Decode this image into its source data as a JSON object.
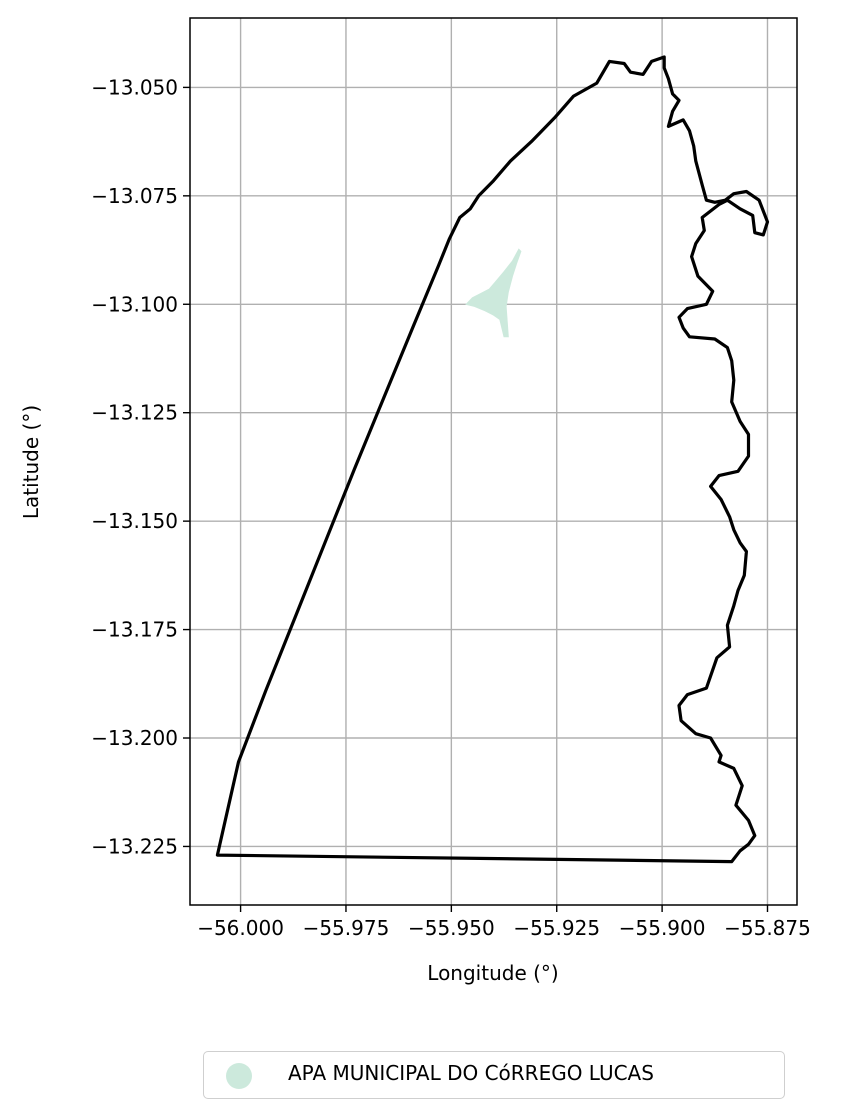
{
  "chart_data": {
    "type": "map",
    "xlabel": "Longitude (°)",
    "ylabel": "Latitude (°)",
    "xlim": [
      -56.012,
      -55.868
    ],
    "ylim": [
      -13.2385,
      -13.034
    ],
    "grid": true,
    "x_ticks": [
      -56.0,
      -55.975,
      -55.95,
      -55.925,
      -55.9,
      -55.875
    ],
    "x_tick_labels": [
      "−56.000",
      "−55.975",
      "−55.950",
      "−55.925",
      "−55.900",
      "−55.875"
    ],
    "y_ticks": [
      -13.05,
      -13.075,
      -13.1,
      -13.125,
      -13.15,
      -13.175,
      -13.2,
      -13.225
    ],
    "y_tick_labels": [
      "−13.050",
      "−13.075",
      "−13.100",
      "−13.125",
      "−13.150",
      "−13.175",
      "−13.200",
      "−13.225"
    ],
    "legend_position": "bottom-center",
    "outline_color": "#000000",
    "layers": [
      {
        "name": "APA MUNICIPAL DO CóRREGO LUCAS",
        "color": "#cce9dc",
        "geometry": "polygon",
        "coordinates": [
          [
            -55.9465,
            -13.1
          ],
          [
            -55.945,
            -13.0985
          ],
          [
            -55.943,
            -13.0975
          ],
          [
            -55.941,
            -13.0965
          ],
          [
            -55.9395,
            -13.0948
          ],
          [
            -55.9375,
            -13.0925
          ],
          [
            -55.9355,
            -13.09
          ],
          [
            -55.934,
            -13.0873
          ],
          [
            -55.9335,
            -13.0878
          ],
          [
            -55.9345,
            -13.0905
          ],
          [
            -55.9355,
            -13.0935
          ],
          [
            -55.9365,
            -13.0972
          ],
          [
            -55.937,
            -13.1005
          ],
          [
            -55.9365,
            -13.1075
          ],
          [
            -55.9375,
            -13.1075
          ],
          [
            -55.9385,
            -13.1035
          ],
          [
            -55.94,
            -13.1025
          ],
          [
            -55.942,
            -13.1015
          ],
          [
            -55.9445,
            -13.1005
          ]
        ]
      },
      {
        "name": "",
        "color": "#000000",
        "geometry": "polygon-outline",
        "coordinates": [
          [
            -56.0055,
            -13.227
          ],
          [
            -55.8835,
            -13.2285
          ],
          [
            -55.8815,
            -13.226
          ],
          [
            -55.8795,
            -13.2245
          ],
          [
            -55.878,
            -13.2225
          ],
          [
            -55.8795,
            -13.219
          ],
          [
            -55.8825,
            -13.2155
          ],
          [
            -55.881,
            -13.211
          ],
          [
            -55.883,
            -13.207
          ],
          [
            -55.8865,
            -13.2055
          ],
          [
            -55.886,
            -13.204
          ],
          [
            -55.8885,
            -13.2
          ],
          [
            -55.892,
            -13.199
          ],
          [
            -55.8955,
            -13.196
          ],
          [
            -55.896,
            -13.1925
          ],
          [
            -55.894,
            -13.19
          ],
          [
            -55.8895,
            -13.1885
          ],
          [
            -55.887,
            -13.1815
          ],
          [
            -55.884,
            -13.179
          ],
          [
            -55.8845,
            -13.174
          ],
          [
            -55.883,
            -13.1695
          ],
          [
            -55.882,
            -13.166
          ],
          [
            -55.8805,
            -13.1625
          ],
          [
            -55.88,
            -13.157
          ],
          [
            -55.8815,
            -13.155
          ],
          [
            -55.883,
            -13.152
          ],
          [
            -55.884,
            -13.149
          ],
          [
            -55.886,
            -13.145
          ],
          [
            -55.8885,
            -13.142
          ],
          [
            -55.8865,
            -13.1395
          ],
          [
            -55.882,
            -13.1385
          ],
          [
            -55.8795,
            -13.135
          ],
          [
            -55.8795,
            -13.1315
          ],
          [
            -55.8795,
            -13.13
          ],
          [
            -55.8815,
            -13.127
          ],
          [
            -55.8835,
            -13.1225
          ],
          [
            -55.883,
            -13.1175
          ],
          [
            -55.8835,
            -13.113
          ],
          [
            -55.8845,
            -13.11
          ],
          [
            -55.8875,
            -13.108
          ],
          [
            -55.8935,
            -13.1075
          ],
          [
            -55.895,
            -13.1055
          ],
          [
            -55.896,
            -13.103
          ],
          [
            -55.894,
            -13.101
          ],
          [
            -55.8895,
            -13.1
          ],
          [
            -55.888,
            -13.097
          ],
          [
            -55.8915,
            -13.0935
          ],
          [
            -55.893,
            -13.089
          ],
          [
            -55.892,
            -13.086
          ],
          [
            -55.89,
            -13.083
          ],
          [
            -55.8905,
            -13.08
          ],
          [
            -55.8865,
            -13.077
          ],
          [
            -55.8845,
            -13.076
          ],
          [
            -55.8815,
            -13.078
          ],
          [
            -55.8785,
            -13.0795
          ],
          [
            -55.878,
            -13.0835
          ],
          [
            -55.876,
            -13.084
          ],
          [
            -55.875,
            -13.081
          ],
          [
            -55.877,
            -13.076
          ],
          [
            -55.88,
            -13.074
          ],
          [
            -55.883,
            -13.0745
          ],
          [
            -55.885,
            -13.076
          ],
          [
            -55.8875,
            -13.0765
          ],
          [
            -55.8895,
            -13.076
          ],
          [
            -55.8905,
            -13.0725
          ],
          [
            -55.892,
            -13.067
          ],
          [
            -55.8925,
            -13.0635
          ],
          [
            -55.8935,
            -13.06
          ],
          [
            -55.895,
            -13.0575
          ],
          [
            -55.8985,
            -13.059
          ],
          [
            -55.8975,
            -13.0555
          ],
          [
            -55.896,
            -13.053
          ],
          [
            -55.8975,
            -13.0515
          ],
          [
            -55.8985,
            -13.048
          ],
          [
            -55.8995,
            -13.0455
          ],
          [
            -55.8995,
            -13.043
          ],
          [
            -55.9025,
            -13.044
          ],
          [
            -55.9045,
            -13.047
          ],
          [
            -55.9075,
            -13.0465
          ],
          [
            -55.909,
            -13.0445
          ],
          [
            -55.9125,
            -13.044
          ],
          [
            -55.9155,
            -13.049
          ],
          [
            -55.921,
            -13.052
          ],
          [
            -55.9255,
            -13.057
          ],
          [
            -55.931,
            -13.0625
          ],
          [
            -55.936,
            -13.067
          ],
          [
            -55.94,
            -13.0715
          ],
          [
            -55.9435,
            -13.075
          ],
          [
            -55.9455,
            -13.078
          ],
          [
            -55.948,
            -13.08
          ],
          [
            -55.9505,
            -13.085
          ],
          [
            -55.953,
            -13.091
          ],
          [
            -55.959,
            -13.105
          ],
          [
            -55.966,
            -13.1215
          ],
          [
            -55.973,
            -13.138
          ],
          [
            -55.98,
            -13.155
          ],
          [
            -55.987,
            -13.172
          ],
          [
            -55.994,
            -13.189
          ],
          [
            -56.0005,
            -13.2055
          ],
          [
            -56.0055,
            -13.227
          ]
        ]
      }
    ]
  },
  "legend": {
    "label": "APA MUNICIPAL DO CóRREGO LUCAS",
    "marker_color": "#cce9dc"
  }
}
